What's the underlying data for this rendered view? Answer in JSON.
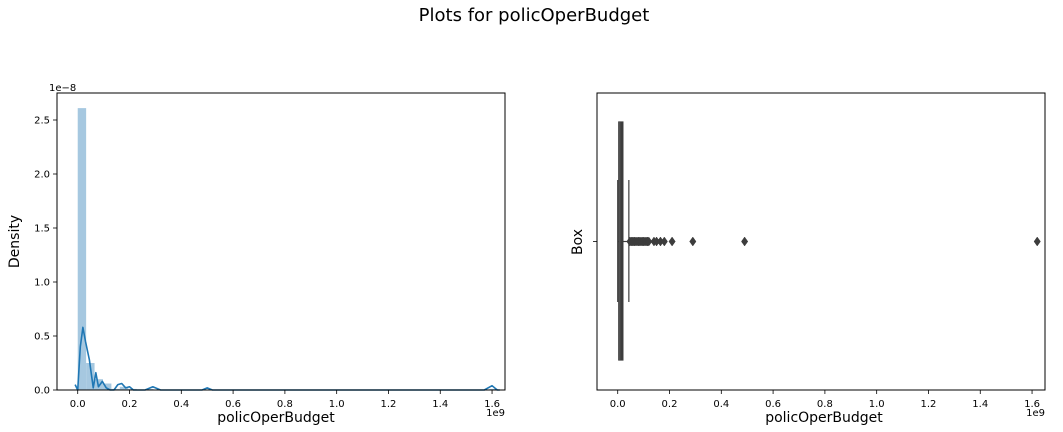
{
  "figure": {
    "suptitle": "Plots for policOperBudget"
  },
  "colors": {
    "hist_fill": "#a6c8e0",
    "kde_line": "#1f77b4",
    "box_dark": "#3d3d3d",
    "outlier": "#3d3d3d"
  },
  "chart_data": [
    {
      "type": "histogram",
      "subtype": "distplot-with-kde",
      "xlabel": "policOperBudget",
      "ylabel": "Density",
      "x_scale_label": "1e9",
      "y_scale_label": "1e−8",
      "xlim": [
        -0.08,
        1.65
      ],
      "ylim": [
        0,
        2.75
      ],
      "xticks": [
        0.0,
        0.2,
        0.4,
        0.6,
        0.8,
        1.0,
        1.2,
        1.4,
        1.6
      ],
      "xtick_labels": [
        "0.0",
        "0.2",
        "0.4",
        "0.6",
        "0.8",
        "1.0",
        "1.2",
        "1.4",
        "1.6"
      ],
      "yticks": [
        0.0,
        0.5,
        1.0,
        1.5,
        2.0,
        2.5
      ],
      "ytick_labels": [
        "0.0",
        "0.5",
        "1.0",
        "1.5",
        "2.0",
        "2.5"
      ],
      "bins": [
        {
          "x0": 0.0,
          "x1": 0.0325,
          "y": 2.61
        },
        {
          "x0": 0.0325,
          "x1": 0.065,
          "y": 0.25
        },
        {
          "x0": 0.065,
          "x1": 0.0975,
          "y": 0.1
        },
        {
          "x0": 0.0975,
          "x1": 0.13,
          "y": 0.06
        },
        {
          "x0": 0.13,
          "x1": 0.1625,
          "y": 0.01
        },
        {
          "x0": 0.1625,
          "x1": 0.195,
          "y": 0.03
        },
        {
          "x0": 0.195,
          "x1": 0.2275,
          "y": 0.01
        },
        {
          "x0": 0.26,
          "x1": 0.2925,
          "y": 0.01
        },
        {
          "x0": 0.4875,
          "x1": 0.52,
          "y": 0.005
        },
        {
          "x0": 1.59,
          "x1": 1.6225,
          "y": 0.01
        }
      ],
      "kde": {
        "x": [
          -0.01,
          0.0,
          0.01,
          0.02,
          0.03,
          0.045,
          0.06,
          0.07,
          0.08,
          0.095,
          0.11,
          0.125,
          0.14,
          0.155,
          0.17,
          0.185,
          0.2,
          0.215,
          0.23,
          0.26,
          0.29,
          0.32,
          0.45,
          0.48,
          0.5,
          0.52,
          0.6,
          1.0,
          1.4,
          1.57,
          1.6,
          1.62,
          1.63
        ],
        "y": [
          0.05,
          0.0,
          0.4,
          0.58,
          0.45,
          0.28,
          0.02,
          0.16,
          0.03,
          0.08,
          0.02,
          0.0,
          0.0,
          0.05,
          0.06,
          0.02,
          0.03,
          0.0,
          0.0,
          0.0,
          0.03,
          0.0,
          0.0,
          0.0,
          0.02,
          0.0,
          0.0,
          0.0,
          0.0,
          0.0,
          0.04,
          0.0,
          0.0
        ]
      }
    },
    {
      "type": "box",
      "orientation": "horizontal",
      "xlabel": "policOperBudget",
      "ylabel": "Box",
      "x_scale_label": "1e9",
      "xlim": [
        -0.08,
        1.65
      ],
      "xticks": [
        0.0,
        0.2,
        0.4,
        0.6,
        0.8,
        1.0,
        1.2,
        1.4,
        1.6
      ],
      "xtick_labels": [
        "0.0",
        "0.2",
        "0.4",
        "0.6",
        "0.8",
        "1.0",
        "1.2",
        "1.4",
        "1.6"
      ],
      "box": {
        "whisker_low": 0.0,
        "q1": 0.004,
        "median": 0.008,
        "q3": 0.02,
        "whisker_high": 0.043
      },
      "outliers": [
        0.047,
        0.052,
        0.056,
        0.06,
        0.065,
        0.07,
        0.075,
        0.08,
        0.085,
        0.09,
        0.095,
        0.1,
        0.105,
        0.11,
        0.115,
        0.12,
        0.14,
        0.15,
        0.165,
        0.18,
        0.21,
        0.29,
        0.49,
        1.62
      ]
    }
  ]
}
